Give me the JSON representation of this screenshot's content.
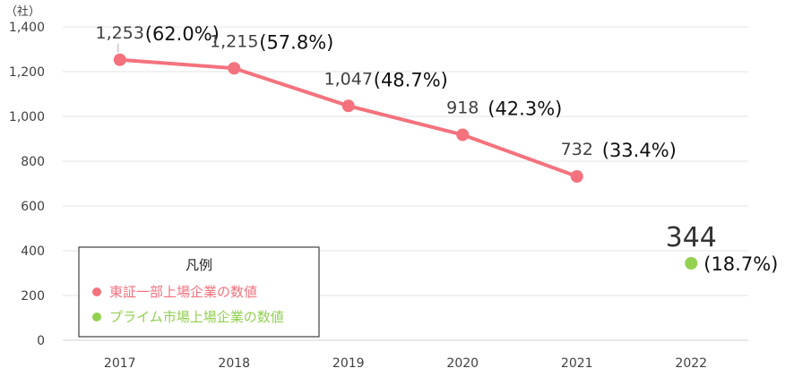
{
  "chart_data": {
    "type": "line",
    "y_unit": "（社）",
    "ylim": [
      0,
      1400
    ],
    "y_ticks": [
      "0",
      "200",
      "400",
      "600",
      "800",
      "1,000",
      "1,200",
      "1,400"
    ],
    "y_tick_values": [
      0,
      200,
      400,
      600,
      800,
      1000,
      1200,
      1400
    ],
    "categories": [
      "2017",
      "2018",
      "2019",
      "2020",
      "2021",
      "2022"
    ],
    "grid": true,
    "series": [
      {
        "name": "東証一部上場企業の数値",
        "color": "#f4727d",
        "marker_color": "#f4727d",
        "points": [
          {
            "x": "2017",
            "y": 1253,
            "label": "1,253",
            "pct": "(62.0%)"
          },
          {
            "x": "2018",
            "y": 1215,
            "label": "1,215",
            "pct": "(57.8%)"
          },
          {
            "x": "2019",
            "y": 1047,
            "label": "1,047",
            "pct": "(48.7%)"
          },
          {
            "x": "2020",
            "y": 918,
            "label": "918",
            "pct": "(42.3%)"
          },
          {
            "x": "2021",
            "y": 732,
            "label": "732",
            "pct": "(33.4%)"
          }
        ]
      },
      {
        "name": "プライム市場上場企業の数値",
        "color": "#92d050",
        "marker_color": "#92d050",
        "points": [
          {
            "x": "2022",
            "y": 344,
            "label": "344",
            "pct": "(18.7%)"
          }
        ]
      }
    ],
    "legend": {
      "title": "凡例",
      "placement": "bottom-left"
    }
  }
}
